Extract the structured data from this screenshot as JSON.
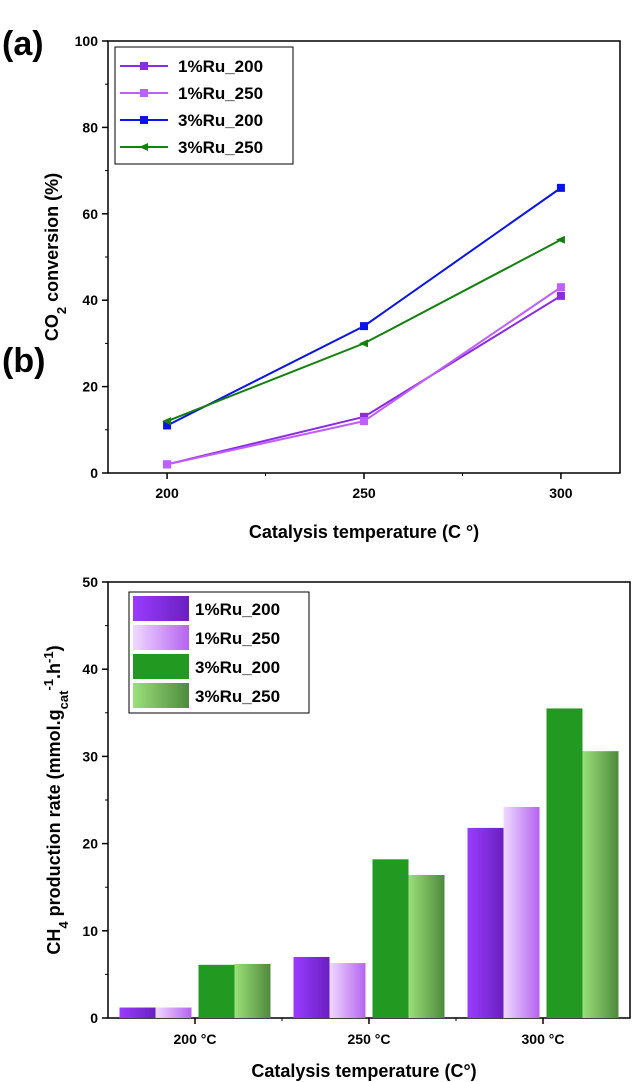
{
  "panels": {
    "a": {
      "label": "(a)"
    },
    "b": {
      "label": "(b)"
    }
  },
  "chart_data": [
    {
      "type": "line",
      "panel": "(a)",
      "xlabel": "Catalysis temperature (C °)",
      "ylabel": "CO2 conversion (%)",
      "ylabel_parts": {
        "pre": "CO",
        "sub": "2",
        "post": " conversion (%)"
      },
      "x": [
        200,
        250,
        300
      ],
      "x_ticks": [
        "200",
        "250",
        "300"
      ],
      "xlim": [
        185,
        315
      ],
      "ylim": [
        0,
        100
      ],
      "y_ticks": [
        "0",
        "20",
        "40",
        "60",
        "80",
        "100"
      ],
      "grid": false,
      "legend_position": "top-left",
      "series": [
        {
          "name": "1%Ru_200",
          "values": [
            2,
            13,
            41
          ],
          "color": "#8b2be2",
          "marker": "square"
        },
        {
          "name": "1%Ru_250",
          "values": [
            2,
            12,
            43
          ],
          "color": "#bf5fff",
          "marker": "square"
        },
        {
          "name": "3%Ru_200",
          "values": [
            11,
            34,
            66
          ],
          "color": "#0a14e6",
          "marker": "square"
        },
        {
          "name": "3%Ru_250",
          "values": [
            12,
            30,
            54
          ],
          "color": "#15800f",
          "marker": "triangle-left"
        }
      ]
    },
    {
      "type": "bar",
      "panel": "(b)",
      "xlabel": "Catalysis temperature (C°)",
      "ylabel": "CH4 production rate (mmol.gcat-1.h-1)",
      "ylabel_parts": {
        "a": "CH",
        "b": "4",
        "c": " production rate (mmol.g",
        "d": "cat",
        "e": "-1",
        "f": ".h",
        "g": "-1",
        "h": ")"
      },
      "categories": [
        "200 °C",
        "250 °C",
        "300 °C"
      ],
      "ylim": [
        0,
        50
      ],
      "y_ticks": [
        "0",
        "10",
        "20",
        "30",
        "40",
        "50"
      ],
      "grid": false,
      "legend_position": "top-left",
      "series": [
        {
          "name": "1%Ru_200",
          "values": [
            1.2,
            7.0,
            21.8
          ],
          "color": "#8b2be2"
        },
        {
          "name": "1%Ru_250",
          "values": [
            1.2,
            6.3,
            24.2
          ],
          "color": "#d79bff"
        },
        {
          "name": "3%Ru_200",
          "values": [
            6.1,
            18.2,
            35.5
          ],
          "color": "#229a22"
        },
        {
          "name": "3%Ru_250",
          "values": [
            6.2,
            16.4,
            30.6
          ],
          "color": "#6fbe56"
        }
      ]
    }
  ]
}
